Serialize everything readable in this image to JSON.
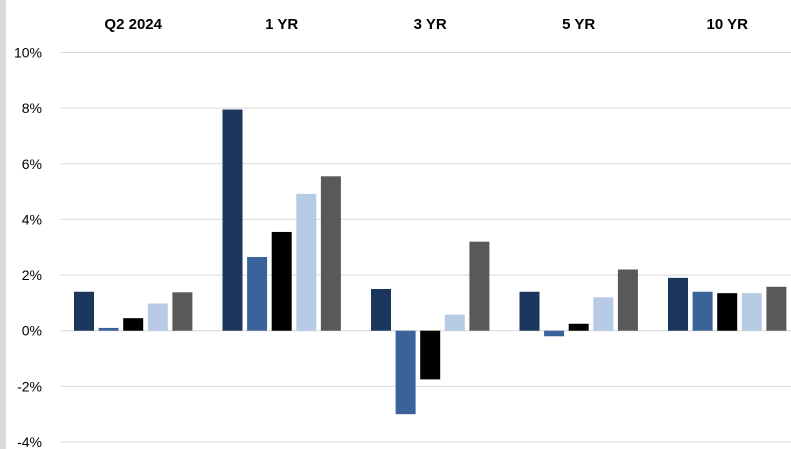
{
  "chart_data": {
    "type": "bar",
    "categories": [
      "Q2 2024",
      "1 YR",
      "3 YR",
      "5 YR",
      "10 YR"
    ],
    "series": [
      {
        "color": "#1b365d",
        "values": [
          1.4,
          7.95,
          1.5,
          1.4,
          1.9
        ]
      },
      {
        "color": "#3a6499",
        "values": [
          0.1,
          2.65,
          -3.0,
          -0.2,
          1.4
        ]
      },
      {
        "color": "#000000",
        "values": [
          0.45,
          3.55,
          -1.75,
          0.25,
          1.35
        ]
      },
      {
        "color": "#b7cbe4",
        "values": [
          0.98,
          4.92,
          0.58,
          1.2,
          1.35
        ]
      },
      {
        "color": "#595959",
        "values": [
          1.38,
          5.55,
          3.2,
          2.2,
          1.58
        ]
      }
    ],
    "ylim": [
      -4,
      10
    ],
    "yticks": [
      -4,
      -2,
      0,
      2,
      4,
      6,
      8,
      10
    ],
    "ytick_labels": [
      "-4%",
      "-2%",
      "0%",
      "2%",
      "4%",
      "6%",
      "8%",
      "10%"
    ],
    "grid": true,
    "category_labels_position": "top",
    "legend": "none"
  }
}
